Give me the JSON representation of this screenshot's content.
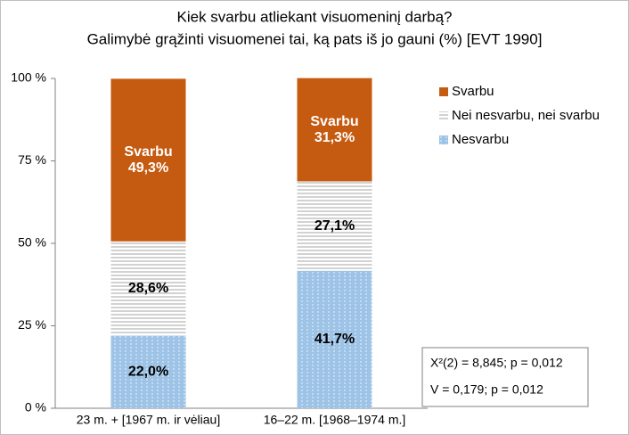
{
  "chart_data": {
    "type": "stacked_bar",
    "title": "Kiek svarbu atliekant visuomeninį darbą?",
    "subtitle": "Galimybė grąžinti visuomenei tai, ką pats iš jo gauni (%) [EVT 1990]",
    "categories": [
      "23 m. + [1967 m. ir vėliau]",
      "16–22 m. [1968–1974 m.]"
    ],
    "series": [
      {
        "name": "Nesvarbu",
        "color": "#9dc3e6",
        "pattern": "dots",
        "values": [
          22.0,
          41.7
        ],
        "value_labels": [
          "22,0%",
          "41,7%"
        ]
      },
      {
        "name": "Nei nesvarbu, nei svarbu",
        "color": "#ffffff",
        "pattern": "lines",
        "values": [
          28.6,
          27.1
        ],
        "value_labels": [
          "28,6%",
          "27,1%"
        ]
      },
      {
        "name": "Svarbu",
        "color": "#c55a11",
        "pattern": "solid",
        "values": [
          49.3,
          31.3
        ],
        "value_labels": [
          "49,3%",
          "31,3%"
        ]
      }
    ],
    "ylim": [
      0,
      100
    ],
    "yticks": [
      {
        "value": 0,
        "label": "0 %"
      },
      {
        "value": 25,
        "label": "25 %"
      },
      {
        "value": 50,
        "label": "50 %"
      },
      {
        "value": 75,
        "label": "75 %"
      },
      {
        "value": 100,
        "label": "100 %"
      }
    ],
    "grid": false,
    "legend": "right",
    "annotations": [
      "X²(2) = 8,845; p = 0,012",
      "V = 0,179; p = 0,012"
    ]
  }
}
